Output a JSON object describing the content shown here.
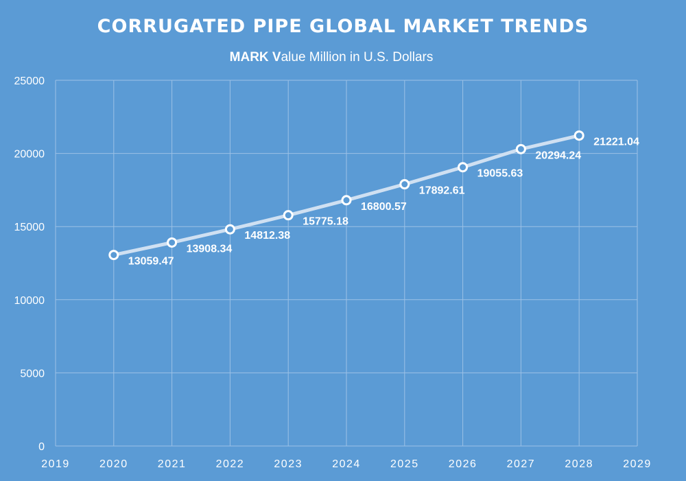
{
  "chart_data": {
    "type": "line",
    "title": "CORRUGATED PIPE GLOBAL MARKET TRENDS",
    "subtitle_bold_1": "MARK V",
    "subtitle_rest": "alue Million in U.S. Dollars",
    "xlabel": "",
    "ylabel": "",
    "xlim": [
      2019,
      2029
    ],
    "ylim": [
      0,
      25000
    ],
    "x_ticks": [
      2019,
      2020,
      2021,
      2022,
      2023,
      2024,
      2025,
      2026,
      2027,
      2028,
      2029
    ],
    "y_ticks": [
      0,
      5000,
      10000,
      15000,
      20000,
      25000
    ],
    "grid": true,
    "legend": "none",
    "series": [
      {
        "x": [
          2020,
          2021,
          2022,
          2023,
          2024,
          2025,
          2026,
          2027,
          2028
        ],
        "values": [
          13059.47,
          13908.34,
          14812.38,
          15775.18,
          16800.57,
          17892.61,
          19055.63,
          20294.24,
          21221.04
        ],
        "labels": [
          "13059.47",
          "13908.34",
          "14812.38",
          "15775.18",
          "16800.57",
          "17892.61",
          "19055.63",
          "20294.24",
          "21221.04"
        ]
      }
    ],
    "colors": {
      "background": "#5b9bd5",
      "line": "#cfe0f2",
      "marker_fill": "#5b9bd5",
      "marker_stroke": "#ffffff",
      "grid": "#9cc1e6",
      "text": "#ffffff"
    }
  }
}
